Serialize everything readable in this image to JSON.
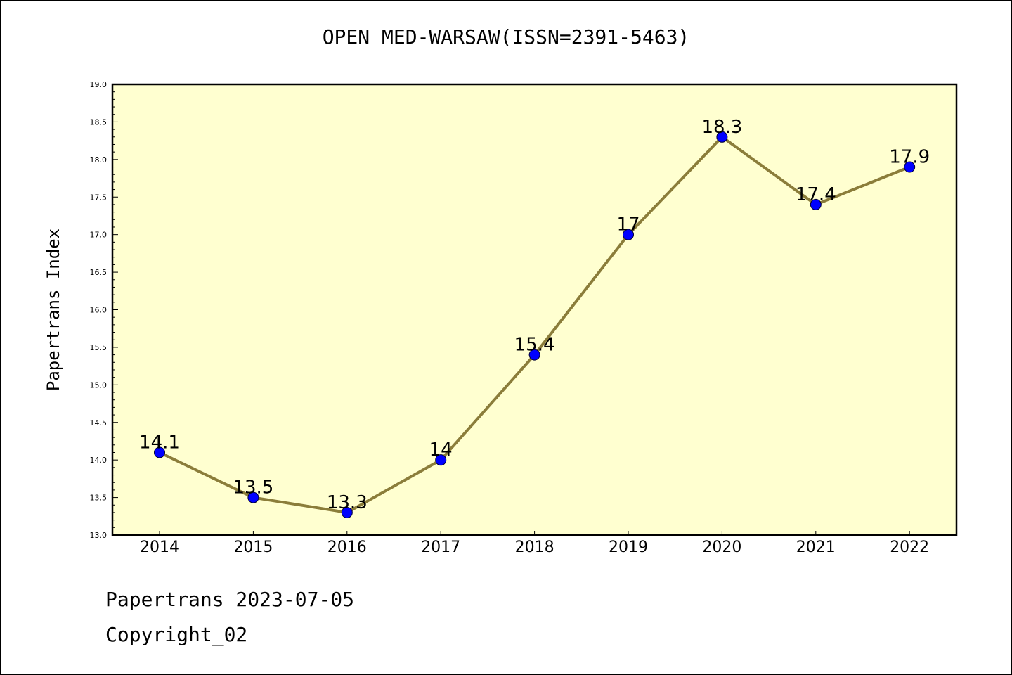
{
  "chart_data": {
    "type": "line",
    "title": "OPEN MED-WARSAW(ISSN=2391-5463)",
    "xlabel": "",
    "ylabel": "Papertrans Index",
    "categories": [
      "2014",
      "2015",
      "2016",
      "2017",
      "2018",
      "2019",
      "2020",
      "2021",
      "2022"
    ],
    "series": [
      {
        "values": [
          14.1,
          13.5,
          13.3,
          14.0,
          15.4,
          17.0,
          18.3,
          17.4,
          17.9
        ],
        "data_labels": [
          "14.1",
          "13.5",
          "13.3",
          "14",
          "15.4",
          "17",
          "18.3",
          "17.4",
          "17.9"
        ]
      }
    ],
    "ylim": [
      13.0,
      19.0
    ],
    "yticks": [
      "13.0",
      "13.5",
      "14.0",
      "14.5",
      "15.0",
      "15.5",
      "16.0",
      "16.5",
      "17.0",
      "17.5",
      "18.0",
      "18.5",
      "19.0"
    ],
    "grid": false,
    "legend": "none",
    "colors": {
      "plot_background": "#ffffd0",
      "line": "#8b7d3a",
      "marker": "#0000ff"
    }
  },
  "footer": {
    "line1": "Papertrans 2023-07-05",
    "line2": "Copyright_02"
  }
}
